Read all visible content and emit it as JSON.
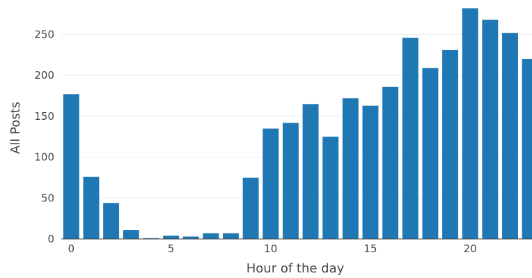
{
  "chart_data": {
    "type": "bar",
    "x": [
      0,
      1,
      2,
      3,
      4,
      5,
      6,
      7,
      8,
      9,
      10,
      11,
      12,
      13,
      14,
      15,
      16,
      17,
      18,
      19,
      20,
      21,
      22,
      23
    ],
    "values": [
      177,
      76,
      44,
      11,
      1,
      4,
      3,
      7,
      7,
      75,
      135,
      142,
      165,
      125,
      172,
      163,
      186,
      246,
      209,
      231,
      282,
      268,
      252,
      220
    ],
    "xlabel": "Hour of the day",
    "ylabel": "All Posts",
    "xticks": [
      "0",
      "5",
      "10",
      "15",
      "20"
    ],
    "xtick_values": [
      0,
      5,
      10,
      15,
      20
    ],
    "yticks": [
      "0",
      "50",
      "100",
      "150",
      "200",
      "250"
    ],
    "ytick_values": [
      0,
      50,
      100,
      150,
      200,
      250
    ],
    "xlim": [
      -0.5,
      23.1
    ],
    "ylim": [
      0,
      282
    ],
    "grid": true,
    "bar_color": "#1f77b4"
  }
}
